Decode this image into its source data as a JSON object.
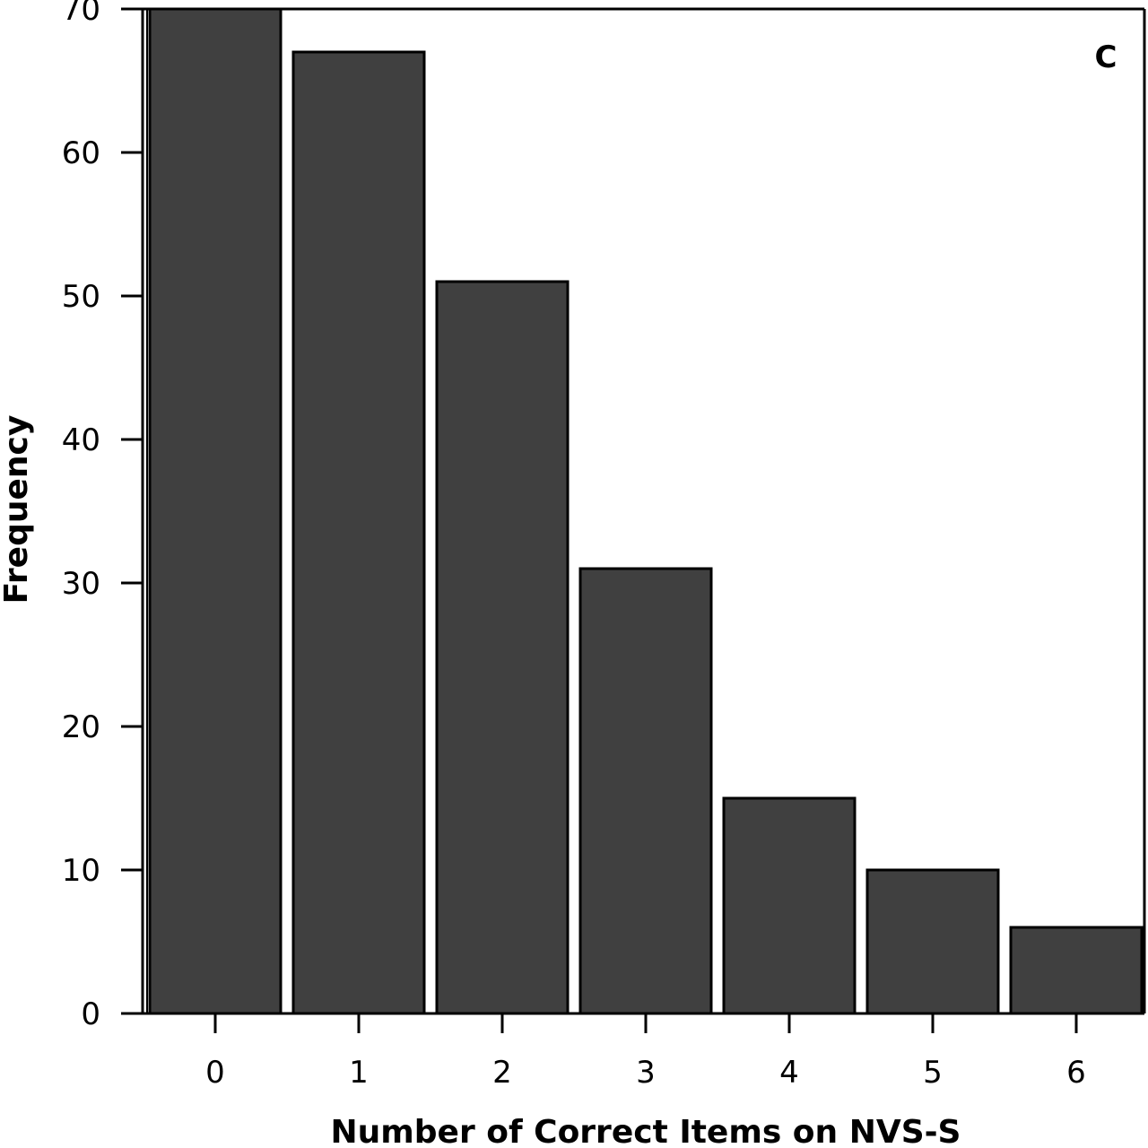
{
  "chart_data": {
    "type": "bar",
    "panel_label": "C",
    "xlabel": "Number of Correct Items on NVS-S",
    "ylabel": "Frequency",
    "categories": [
      "0",
      "1",
      "2",
      "3",
      "4",
      "5",
      "6"
    ],
    "values": [
      70,
      67,
      51,
      31,
      15,
      10,
      6
    ],
    "ylim": [
      0,
      70
    ],
    "yticks": [
      0,
      10,
      20,
      30,
      40,
      50,
      60,
      70
    ],
    "grid": false,
    "legend": "none",
    "bar_color": "#404040",
    "bar_edge_color": "#000000"
  }
}
